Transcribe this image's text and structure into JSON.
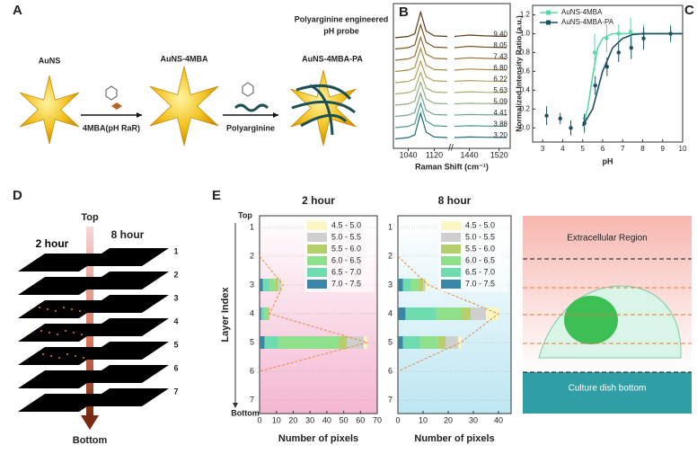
{
  "panel_labels": [
    "A",
    "B",
    "C",
    "D",
    "E"
  ],
  "panel_a": {
    "title": [
      "Polyarginine engineered",
      "pH probe"
    ],
    "labels": [
      "AuNS",
      "AuNS-4MBA",
      "AuNS-4MBA-PA"
    ],
    "arrow_labels": [
      "4MBA(pH RaR)",
      "Polyarginine"
    ]
  },
  "panel_d": {
    "top": "Top",
    "bottom": "Bottom",
    "times": [
      "2 hour",
      "8 hour"
    ],
    "layers": [
      "1",
      "2",
      "3",
      "4",
      "5",
      "6",
      "7"
    ]
  },
  "panel_e_schematic": {
    "regions": [
      "Extracellular Region",
      "Culture dish bottom"
    ]
  },
  "chart_data": [
    {
      "type": "line",
      "xlabel": "Raman Shift (cm⁻¹)",
      "x": [
        1000,
        1040,
        1060,
        1078,
        1095,
        1120,
        1160,
        1280,
        1400,
        1440,
        1480,
        1540
      ],
      "xlim": [
        1000,
        1540
      ],
      "xbreak": [
        1160,
        1400
      ],
      "xticks": [
        1040,
        1120,
        1440,
        1520
      ],
      "series": [
        {
          "name": "9.40",
          "color": "#5a3a1a",
          "values": [
            0.05,
            0.1,
            0.2,
            1.0,
            0.3,
            0.12,
            0.1,
            null,
            0.1,
            0.15,
            0.12,
            0.1
          ]
        },
        {
          "name": "8.05",
          "color": "#7a5628",
          "values": [
            0.05,
            0.1,
            0.2,
            0.95,
            0.3,
            0.12,
            0.1,
            null,
            0.1,
            0.15,
            0.12,
            0.1
          ]
        },
        {
          "name": "7.43",
          "color": "#957436",
          "values": [
            0.05,
            0.1,
            0.2,
            0.9,
            0.28,
            0.12,
            0.1,
            null,
            0.1,
            0.14,
            0.12,
            0.1
          ]
        },
        {
          "name": "6.80",
          "color": "#a88f48",
          "values": [
            0.05,
            0.1,
            0.2,
            0.9,
            0.28,
            0.12,
            0.1,
            null,
            0.1,
            0.14,
            0.12,
            0.1
          ]
        },
        {
          "name": "6.22",
          "color": "#b3a45c",
          "values": [
            0.05,
            0.1,
            0.2,
            0.85,
            0.27,
            0.12,
            0.1,
            null,
            0.1,
            0.13,
            0.11,
            0.1
          ]
        },
        {
          "name": "5.63",
          "color": "#a9ae6c",
          "values": [
            0.05,
            0.1,
            0.2,
            0.85,
            0.27,
            0.12,
            0.1,
            null,
            0.1,
            0.13,
            0.11,
            0.1
          ]
        },
        {
          "name": "5.09",
          "color": "#8fae7c",
          "values": [
            0.05,
            0.1,
            0.2,
            0.9,
            0.28,
            0.12,
            0.1,
            null,
            0.1,
            0.12,
            0.11,
            0.1
          ]
        },
        {
          "name": "4.41",
          "color": "#6fa88c",
          "values": [
            0.05,
            0.1,
            0.2,
            0.9,
            0.28,
            0.12,
            0.1,
            null,
            0.1,
            0.12,
            0.11,
            0.1
          ]
        },
        {
          "name": "3.88",
          "color": "#4e9898",
          "values": [
            0.05,
            0.1,
            0.2,
            0.95,
            0.3,
            0.12,
            0.1,
            null,
            0.1,
            0.12,
            0.11,
            0.1
          ]
        },
        {
          "name": "3.20",
          "color": "#1f6a78",
          "values": [
            0.05,
            0.1,
            0.2,
            1.0,
            0.3,
            0.12,
            0.1,
            null,
            0.1,
            0.12,
            0.11,
            0.1
          ]
        }
      ]
    },
    {
      "type": "scatter",
      "xlabel": "pH",
      "ylabel": "Normalized Intensity Ratio (a.u.)",
      "xlim": [
        2.5,
        10
      ],
      "xticks": [
        3,
        4,
        5,
        6,
        7,
        8,
        9,
        10
      ],
      "ylim": [
        -0.15,
        1.3
      ],
      "yticks": [
        {
          "value": 0,
          "label": "0.0"
        },
        0.2,
        0.4,
        0.6,
        0.8,
        {
          "value": 1,
          "label": "1.0"
        },
        1.2
      ],
      "legend": "upper left",
      "series": [
        {
          "name": "AuNS-4MBA",
          "color": "#5fd6a8",
          "x": [
            5.1,
            5.6,
            6.2,
            6.8,
            7.4,
            8.05,
            9.4
          ],
          "values": [
            0.1,
            0.8,
            0.95,
            1.0,
            1.02,
            1.0,
            1.0
          ],
          "errors": [
            0.05,
            0.2,
            0.15,
            0.1,
            0.15,
            0.1,
            0.1
          ],
          "fit_x": [
            5,
            5.25,
            5.5,
            5.75,
            6,
            6.5,
            7,
            8,
            9,
            10
          ],
          "fit_values": [
            0.02,
            0.2,
            0.55,
            0.85,
            0.95,
            1.0,
            1.0,
            1.0,
            1.0,
            1.0
          ]
        },
        {
          "name": "AuNS-4MBA-PA",
          "color": "#1d4f63",
          "x": [
            3.2,
            3.88,
            4.41,
            5.09,
            5.63,
            6.22,
            6.8,
            7.43,
            8.05,
            9.4
          ],
          "values": [
            0.13,
            0.1,
            0.0,
            0.05,
            0.45,
            0.65,
            0.8,
            0.85,
            0.95,
            1.0
          ],
          "errors": [
            0.1,
            0.06,
            0.08,
            0.1,
            0.1,
            0.1,
            0.1,
            0.12,
            0.12,
            0.08
          ],
          "fit_x": [
            5,
            5.5,
            6,
            6.5,
            7,
            7.5,
            8,
            9,
            10
          ],
          "fit_values": [
            0.02,
            0.2,
            0.6,
            0.85,
            0.95,
            0.99,
            1.0,
            1.0,
            1.0
          ]
        }
      ]
    },
    {
      "type": "bar",
      "orientation": "horizontal",
      "stacked": true,
      "title": "2 hour",
      "xlabel": "Number of pixels",
      "ylabel": "Layer Index",
      "categories": [
        "1",
        "2",
        "3",
        "4",
        "5",
        "6",
        "7"
      ],
      "axis_ends": [
        "Top",
        "Bottom"
      ],
      "xlim": [
        0,
        70
      ],
      "xticks": [
        0,
        10,
        20,
        30,
        40,
        50,
        60,
        70
      ],
      "background": [
        "#ffffff",
        "#f4b6d2"
      ],
      "series": [
        {
          "name": "4.5 - 5.0",
          "color": "#fbf6c4",
          "values": [
            0,
            0,
            1,
            0,
            2,
            0,
            0
          ]
        },
        {
          "name": "5.0 - 5.5",
          "color": "#cfcfcf",
          "values": [
            0,
            0,
            2,
            0,
            10,
            0,
            0
          ]
        },
        {
          "name": "5.5 - 6.0",
          "color": "#b5cf6b",
          "values": [
            0,
            0,
            2,
            1,
            5,
            0,
            0
          ]
        },
        {
          "name": "6.0 - 6.5",
          "color": "#8fe08a",
          "values": [
            0,
            0,
            3,
            2,
            36,
            0,
            0
          ]
        },
        {
          "name": "6.5 - 7.0",
          "color": "#6fdcb0",
          "values": [
            0,
            0,
            4,
            2,
            8,
            0,
            0
          ]
        },
        {
          "name": "7.0 - 7.5",
          "color": "#3a86a8",
          "values": [
            0,
            0,
            2,
            1,
            3,
            0,
            0
          ]
        }
      ]
    },
    {
      "type": "bar",
      "orientation": "horizontal",
      "stacked": true,
      "title": "8 hour",
      "xlabel": "Number of pixels",
      "categories": [
        "1",
        "2",
        "3",
        "4",
        "5",
        "6",
        "7"
      ],
      "xlim": [
        0,
        45
      ],
      "xticks": [
        0,
        10,
        20,
        30,
        40
      ],
      "background": [
        "#ffffff",
        "#bde6f2"
      ],
      "series": [
        {
          "name": "4.5 - 5.0",
          "color": "#fbf6c4",
          "values": [
            0,
            0,
            1,
            5,
            1,
            0,
            0
          ]
        },
        {
          "name": "5.0 - 5.5",
          "color": "#cfcfcf",
          "values": [
            0,
            0,
            1,
            6,
            5,
            0,
            0
          ]
        },
        {
          "name": "5.5 - 6.0",
          "color": "#b5cf6b",
          "values": [
            0,
            0,
            2,
            4,
            3,
            0,
            0
          ]
        },
        {
          "name": "6.0 - 6.5",
          "color": "#8fe08a",
          "values": [
            0,
            0,
            3,
            10,
            7,
            0,
            0
          ]
        },
        {
          "name": "6.5 - 7.0",
          "color": "#6fdcb0",
          "values": [
            0,
            0,
            3,
            12,
            7,
            0,
            0
          ]
        },
        {
          "name": "7.0 - 7.5",
          "color": "#3a86a8",
          "values": [
            0,
            0,
            2,
            3,
            2,
            0,
            0
          ]
        }
      ]
    }
  ]
}
